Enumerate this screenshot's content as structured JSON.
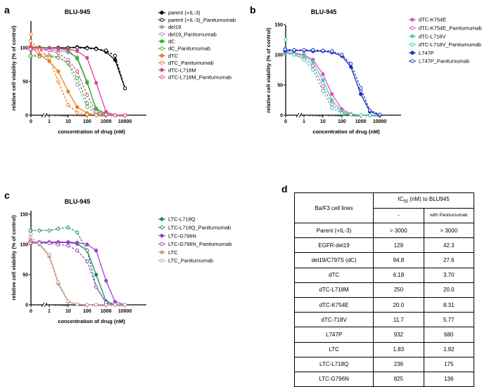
{
  "chart_data": [
    {
      "type": "line",
      "panel_label": "a",
      "title": "BLU-945",
      "xlabel": "concentration of drug (nM)",
      "ylabel": "relative cell viability (% of control)",
      "xscale": "log",
      "x_ticks": [
        "0",
        "1",
        "10",
        "100",
        "1000",
        "10000"
      ],
      "y_ticks": [
        "0",
        "50",
        "100"
      ],
      "ylim": [
        0,
        140
      ],
      "legend_position": "right",
      "x": [
        0,
        0.1,
        0.3,
        1,
        3,
        10,
        30,
        100,
        300,
        1000,
        3000,
        10000
      ],
      "series": [
        {
          "name": "parent (+IL-3)",
          "color": "#000000",
          "dashed": false,
          "open": false,
          "values": [
            100,
            100,
            100,
            100,
            100,
            100,
            101,
            100,
            99,
            94,
            82,
            40
          ]
        },
        {
          "name": "parent (+IL-3)_Panitumumab",
          "color": "#000000",
          "dashed": true,
          "open": true,
          "values": [
            100,
            100,
            100,
            99,
            100,
            100,
            100,
            99,
            98,
            96,
            88,
            40
          ]
        },
        {
          "name": "del19",
          "color": "#a0a0a0",
          "dashed": false,
          "open": false,
          "values": [
            97,
            97,
            98,
            97,
            96,
            93,
            86,
            50,
            8,
            1,
            0,
            0
          ]
        },
        {
          "name": "del19_Panitumumab",
          "color": "#a0a0a0",
          "dashed": true,
          "open": true,
          "values": [
            88,
            88,
            90,
            89,
            86,
            76,
            45,
            12,
            2,
            0,
            0,
            0
          ]
        },
        {
          "name": "dC",
          "color": "#2ab52a",
          "dashed": false,
          "open": false,
          "values": [
            101,
            101,
            101,
            100,
            99,
            96,
            84,
            48,
            10,
            2,
            0,
            0
          ]
        },
        {
          "name": "dC_Panitumumab",
          "color": "#2ab52a",
          "dashed": true,
          "open": true,
          "values": [
            88,
            88,
            87,
            87,
            85,
            78,
            55,
            18,
            3,
            1,
            0,
            0
          ]
        },
        {
          "name": "dTC",
          "color": "#f07c1e",
          "dashed": false,
          "open": false,
          "values": [
            102,
            102,
            90,
            80,
            65,
            35,
            12,
            3,
            0,
            0,
            0,
            0
          ]
        },
        {
          "name": "dTC_Panitumumab",
          "color": "#f07c1e",
          "dashed": true,
          "open": true,
          "values": [
            120,
            110,
            98,
            85,
            50,
            15,
            4,
            1,
            0,
            0,
            0,
            0
          ]
        },
        {
          "name": "dTC-L718M",
          "color": "#e0409c",
          "dashed": false,
          "open": false,
          "values": [
            100,
            100,
            100,
            99,
            99,
            98,
            95,
            85,
            48,
            5,
            0,
            0
          ]
        },
        {
          "name": "dTC-L718M_Panitumumab",
          "color": "#e0409c",
          "dashed": true,
          "open": true,
          "values": [
            98,
            98,
            97,
            96,
            92,
            82,
            65,
            30,
            5,
            1,
            0,
            0
          ]
        }
      ]
    },
    {
      "type": "line",
      "panel_label": "b",
      "title": "BLU-945",
      "xlabel": "concentration of drug (nM)",
      "ylabel": "relative cell viability (% of control)",
      "xscale": "log",
      "x_ticks": [
        "0",
        "1",
        "10",
        "100",
        "1000",
        "10000"
      ],
      "y_ticks": [
        "0",
        "50",
        "100",
        "150"
      ],
      "ylim": [
        0,
        150
      ],
      "legend_position": "right",
      "x": [
        0,
        0.1,
        0.3,
        1,
        3,
        10,
        30,
        100,
        300,
        1000,
        3000,
        10000
      ],
      "series": [
        {
          "name": "dTC-K754E",
          "color": "#e050c8",
          "dashed": false,
          "open": false,
          "values": [
            104,
            103,
            103,
            100,
            92,
            68,
            35,
            10,
            2,
            0,
            0,
            0
          ]
        },
        {
          "name": "dTC-K754E_Panitumumab",
          "color": "#e050c8",
          "dashed": true,
          "open": true,
          "values": [
            103,
            102,
            100,
            95,
            82,
            48,
            18,
            4,
            1,
            0,
            0,
            0
          ]
        },
        {
          "name": "dTC-L718V",
          "color": "#3cd6a8",
          "dashed": false,
          "open": false,
          "values": [
            104,
            103,
            102,
            98,
            88,
            58,
            25,
            6,
            1,
            0,
            0,
            0
          ]
        },
        {
          "name": "dTC-L718V_Panitumumab",
          "color": "#3cd6a8",
          "dashed": true,
          "open": true,
          "values": [
            125,
            110,
            100,
            92,
            75,
            40,
            12,
            3,
            1,
            0,
            0,
            0
          ]
        },
        {
          "name": "L747P",
          "color": "#1c2fbf",
          "dashed": false,
          "open": false,
          "values": [
            107,
            107,
            107,
            107,
            106,
            106,
            104,
            98,
            80,
            35,
            6,
            0
          ]
        },
        {
          "name": "L747P_Panitumumab",
          "color": "#1c2fbf",
          "dashed": true,
          "open": true,
          "values": [
            108,
            109,
            108,
            108,
            108,
            107,
            106,
            100,
            85,
            45,
            8,
            1
          ]
        }
      ]
    },
    {
      "type": "line",
      "panel_label": "c",
      "title": "BLU-945",
      "xlabel": "concentration of drug (nM)",
      "ylabel": "relative cell viability (% of control)",
      "xscale": "log",
      "x_ticks": [
        "0",
        "1",
        "10",
        "100",
        "1000",
        "10000"
      ],
      "y_ticks": [
        "0",
        "50",
        "100",
        "150"
      ],
      "ylim": [
        0,
        150
      ],
      "legend_position": "right",
      "x": [
        0,
        0.1,
        0.3,
        1,
        3,
        10,
        30,
        100,
        300,
        1000,
        3000,
        10000
      ],
      "series": [
        {
          "name": "LTC-L718Q",
          "color": "#1a8a5a",
          "dashed": false,
          "open": false,
          "values": [
            103,
            103,
            103,
            103,
            103,
            103,
            101,
            90,
            50,
            6,
            0,
            0
          ]
        },
        {
          "name": "LTC-L718Q_Panitumumab",
          "color": "#1a8a5a",
          "dashed": true,
          "open": true,
          "values": [
            123,
            123,
            123,
            123,
            126,
            128,
            120,
            90,
            30,
            3,
            0,
            0
          ]
        },
        {
          "name": "LTC-G796N",
          "color": "#a040d0",
          "dashed": false,
          "open": false,
          "values": [
            104,
            104,
            104,
            104,
            104,
            104,
            103,
            100,
            90,
            40,
            5,
            0
          ]
        },
        {
          "name": "LTC-G796N_Panitumumab",
          "color": "#a040d0",
          "dashed": true,
          "open": true,
          "values": [
            102,
            102,
            102,
            102,
            100,
            98,
            90,
            72,
            30,
            4,
            0,
            0
          ]
        },
        {
          "name": "LTC",
          "color": "#c89a8e",
          "dashed": false,
          "open": false,
          "values": [
            107,
            107,
            100,
            80,
            35,
            5,
            1,
            0,
            0,
            0,
            0,
            0
          ]
        },
        {
          "name": "LTC_Panitumumab",
          "color": "#c89a8e",
          "dashed": true,
          "open": true,
          "values": [
            117,
            112,
            102,
            83,
            38,
            6,
            1,
            0,
            0,
            0,
            0,
            0
          ]
        }
      ]
    },
    {
      "type": "table",
      "panel_label": "d",
      "row_header": "Ba/F3 cell lines",
      "group_header": "IC50 (nM) to BLU945",
      "group_header_main": "IC",
      "group_header_sub": "50",
      "group_header_rest": " (nM) to BLU945",
      "columns": [
        "-",
        "with Panitumumab"
      ],
      "rows": [
        {
          "cell_line": "Parent (+IL-3)",
          "minus": "> 3000",
          "with": "> 3000"
        },
        {
          "cell_line": "EGFR-del19",
          "minus": "129",
          "with": "42.3"
        },
        {
          "cell_line": "del19/C797S (dC)",
          "minus": "94.8",
          "with": "27.6"
        },
        {
          "cell_line": "dTC",
          "minus": "6.18",
          "with": "3.70"
        },
        {
          "cell_line": "dTC-L718M",
          "minus": "250",
          "with": "20.0"
        },
        {
          "cell_line": "dTC-K754E",
          "minus": "20.0",
          "with": "8.31"
        },
        {
          "cell_line": "dTC-718V",
          "minus": "11.7",
          "with": "5.77"
        },
        {
          "cell_line": "L747P",
          "minus": "932",
          "with": "680"
        },
        {
          "cell_line": "LTC",
          "minus": "1.83",
          "with": "1.92"
        },
        {
          "cell_line": "LTC-L718Q",
          "minus": "236",
          "with": "175"
        },
        {
          "cell_line": "LTC-G796N",
          "minus": "825",
          "with": "136"
        }
      ]
    }
  ]
}
